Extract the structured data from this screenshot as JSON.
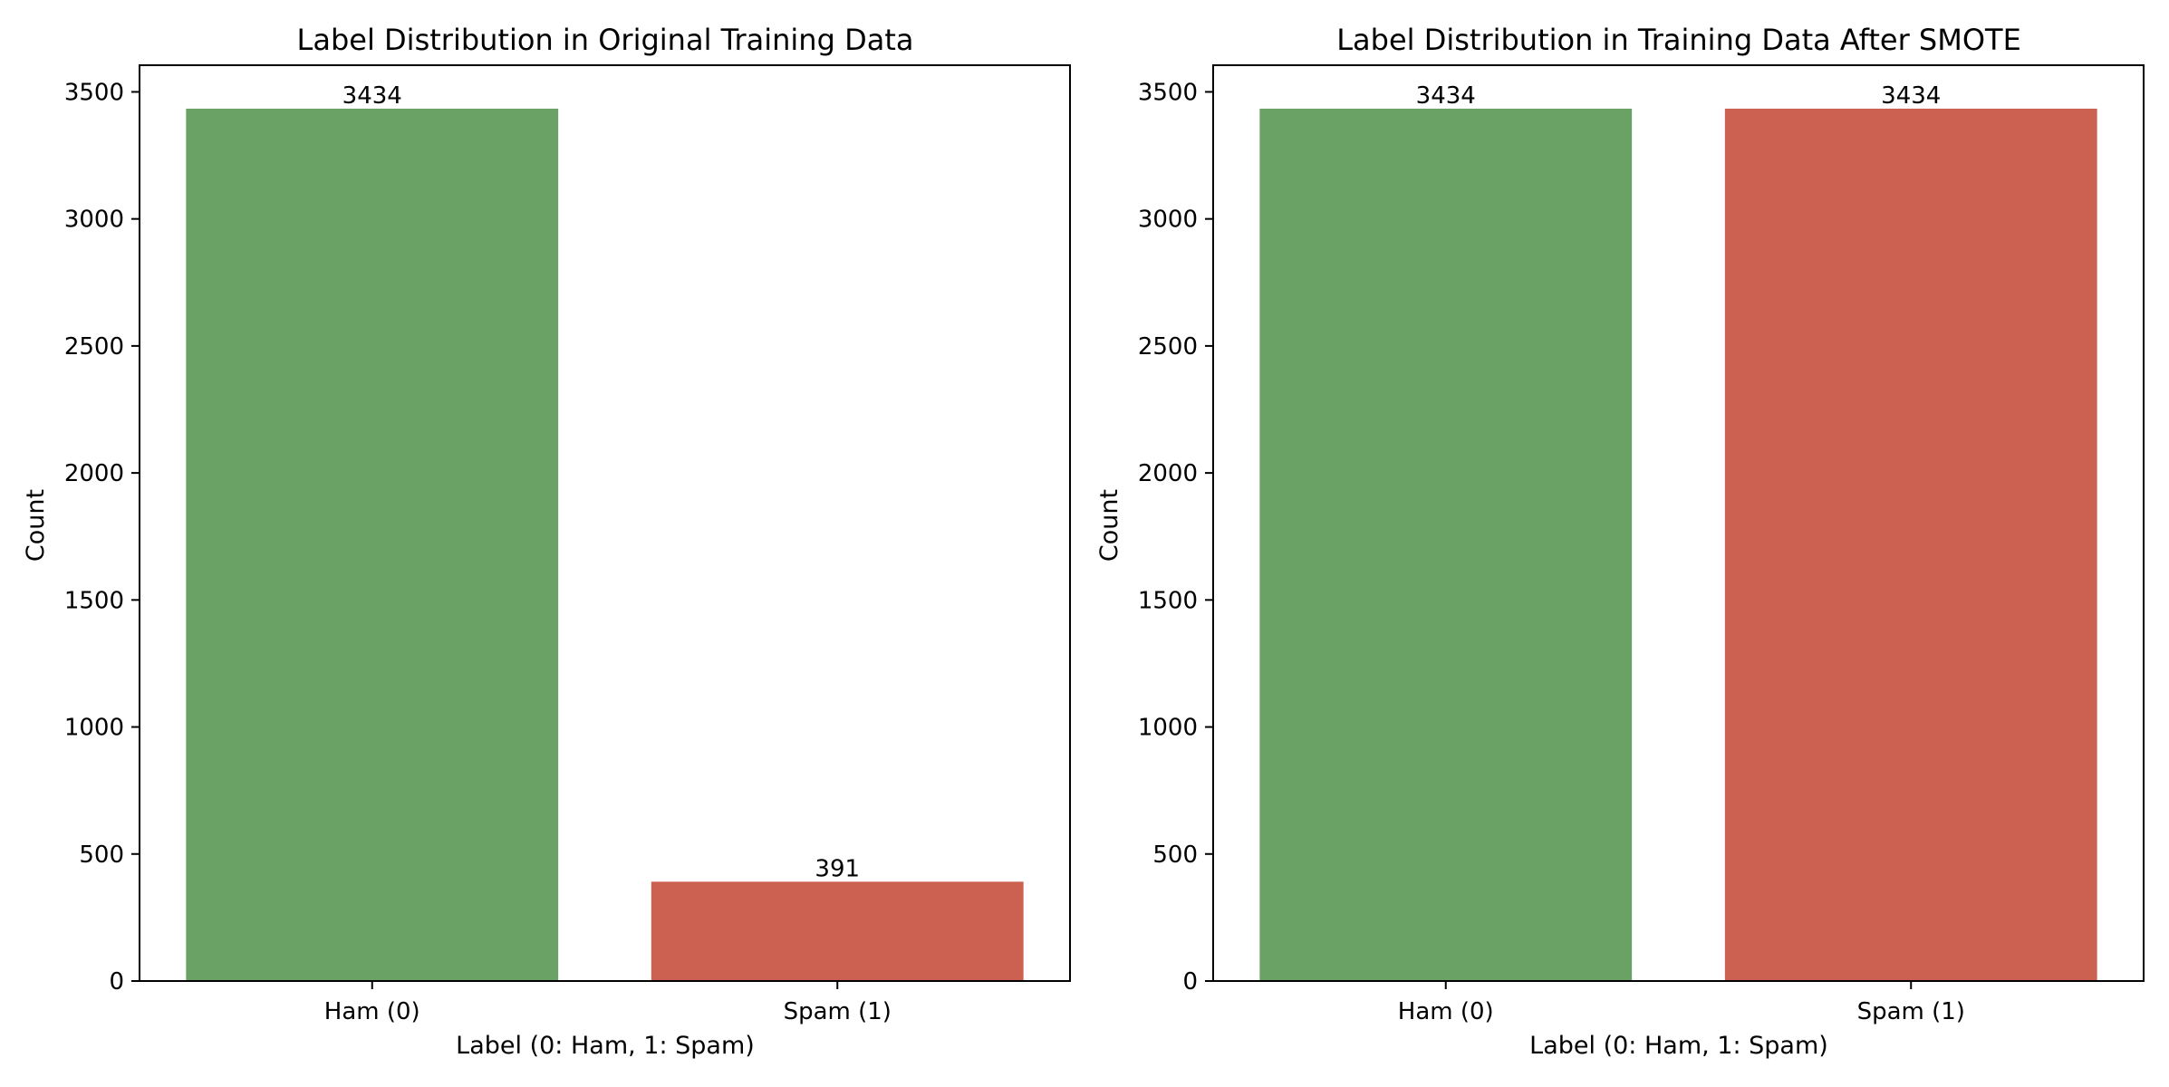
{
  "colors": {
    "ham": "#6aa265",
    "spam": "#cc6152",
    "axis": "#000000",
    "background": "#ffffff"
  },
  "chart_data": [
    {
      "type": "bar",
      "title": "Label Distribution in Original Training Data",
      "xlabel": "Label (0: Ham, 1: Spam)",
      "ylabel": "Count",
      "categories": [
        "Ham (0)",
        "Spam (1)"
      ],
      "values": [
        3434,
        391
      ],
      "data_labels": [
        "3434",
        "391"
      ],
      "ylim": [
        0,
        3605
      ],
      "yticks": [
        0,
        500,
        1000,
        1500,
        2000,
        2500,
        3000,
        3500
      ],
      "grid": false,
      "legend": "none"
    },
    {
      "type": "bar",
      "title": "Label Distribution in Training Data After SMOTE",
      "xlabel": "Label (0: Ham, 1: Spam)",
      "ylabel": "Count",
      "categories": [
        "Ham (0)",
        "Spam (1)"
      ],
      "values": [
        3434,
        3434
      ],
      "data_labels": [
        "3434",
        "3434"
      ],
      "ylim": [
        0,
        3605
      ],
      "yticks": [
        0,
        500,
        1000,
        1500,
        2000,
        2500,
        3000,
        3500
      ],
      "grid": false,
      "legend": "none"
    }
  ]
}
